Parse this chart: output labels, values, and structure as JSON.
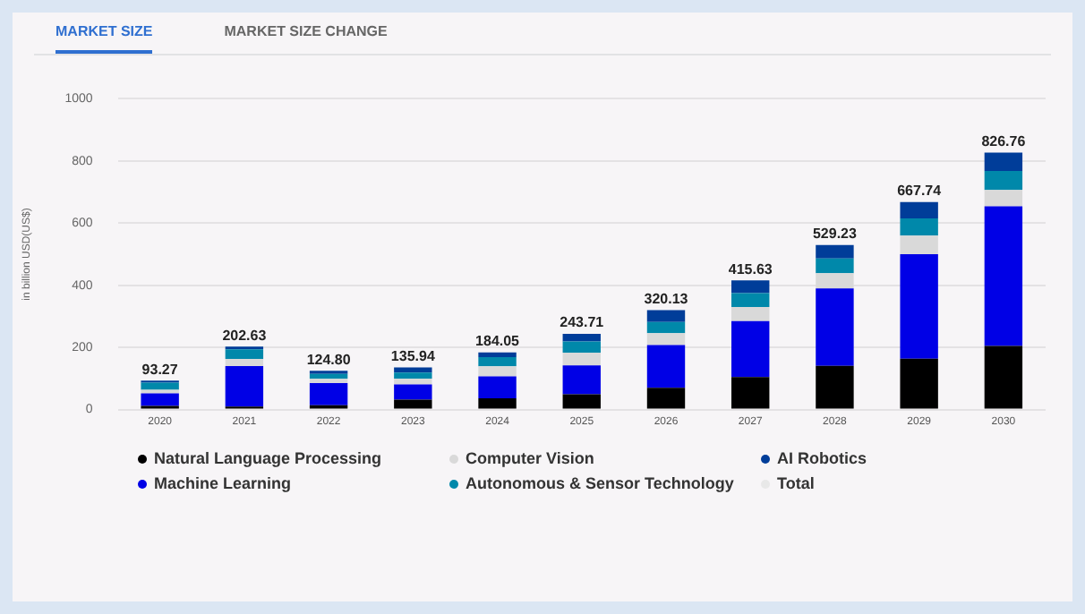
{
  "chart_data": {
    "type": "bar",
    "stacked": true,
    "annotations": [
      "MARKET SIZE",
      "MARKET SIZE CHANGE"
    ],
    "ylabel": "in billion USD(US$)",
    "categories": [
      "2020",
      "2021",
      "2022",
      "2023",
      "2024",
      "2025",
      "2026",
      "2027",
      "2028",
      "2029",
      "2030"
    ],
    "series": [
      {
        "name": "Natural Language Processing",
        "color": "#000000",
        "values": [
          12,
          10,
          14,
          32,
          36,
          49,
          70,
          105,
          141,
          164,
          205
        ]
      },
      {
        "name": "Machine Learning",
        "color": "#0000e6",
        "values": [
          40,
          130,
          71,
          49,
          71,
          93,
          138,
          180,
          249,
          336,
          449
        ]
      },
      {
        "name": "Computer Vision",
        "color": "#d9d9d9",
        "values": [
          12,
          23,
          14,
          19,
          32,
          41,
          38,
          45,
          49,
          60,
          53
        ]
      },
      {
        "name": "Autonomous & Sensor Technology",
        "color": "#0088aa",
        "values": [
          23,
          31,
          16,
          19,
          30,
          36,
          36,
          45,
          47,
          55,
          61
        ]
      },
      {
        "name": "AI Robotics",
        "color": "#003d99",
        "values": [
          6.27,
          8.63,
          9.8,
          16.94,
          15.05,
          24.71,
          38.13,
          40.63,
          43.23,
          52.74,
          58.76
        ]
      },
      {
        "name": "Total",
        "color": "#e8e8e8",
        "values": [
          null,
          null,
          null,
          null,
          null,
          null,
          null,
          null,
          null,
          null,
          null
        ]
      }
    ],
    "totals": [
      "93.27",
      "202.63",
      "124.80",
      "135.94",
      "184.05",
      "243.71",
      "320.13",
      "415.63",
      "529.23",
      "667.74",
      "826.76"
    ],
    "ylim": [
      0,
      1000
    ],
    "yticks": [
      0,
      200,
      400,
      600,
      800,
      1000
    ],
    "grid": "y",
    "legend": "bottom"
  }
}
